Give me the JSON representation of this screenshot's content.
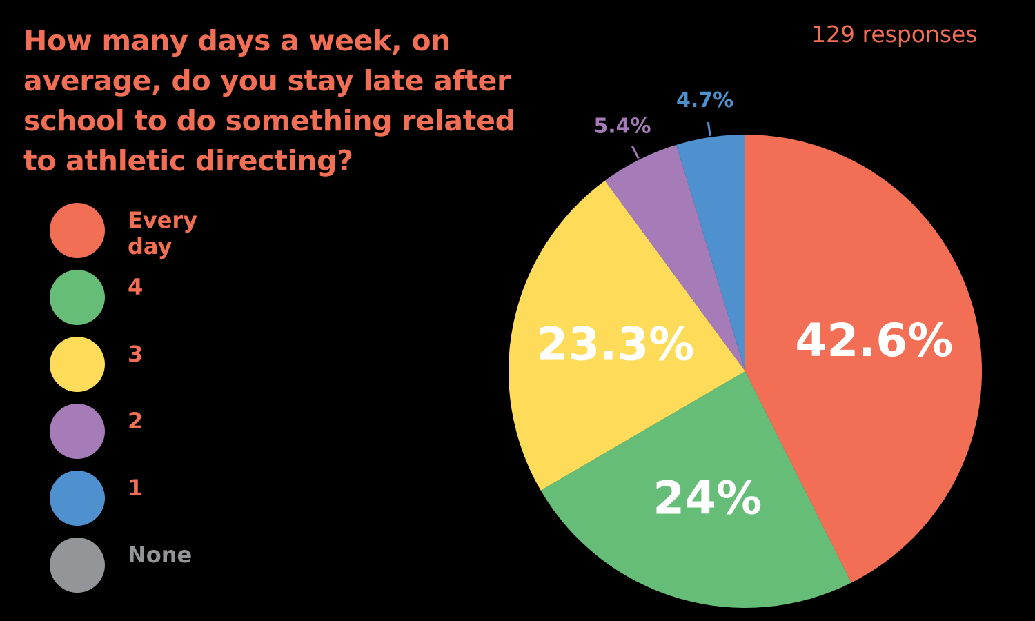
{
  "header": {
    "title": "How many days a week, on average, do you stay late after school to do something related to athletic directing?",
    "responses": "129 responses"
  },
  "chart_data": {
    "type": "pie",
    "title": "How many days a week, on average, do you stay late after school to do something related to athletic directing?",
    "legend_position": "left",
    "slices": [
      {
        "label": "Every day",
        "value": 42.6,
        "display": "42.6%",
        "color": "#f26f56"
      },
      {
        "label": "4",
        "value": 24.0,
        "display": "24%",
        "color": "#65bd78"
      },
      {
        "label": "3",
        "value": 23.3,
        "display": "23.3%",
        "color": "#fedb58"
      },
      {
        "label": "2",
        "value": 5.4,
        "display": "5.4%",
        "color": "#a57bb8"
      },
      {
        "label": "1",
        "value": 4.7,
        "display": "4.7%",
        "color": "#4f91cf"
      },
      {
        "label": "None",
        "value": 0,
        "display": "",
        "color": "#939598"
      }
    ]
  },
  "colors": {
    "background": "#000000",
    "accent": "#f26f56",
    "none_label": "#939598"
  }
}
